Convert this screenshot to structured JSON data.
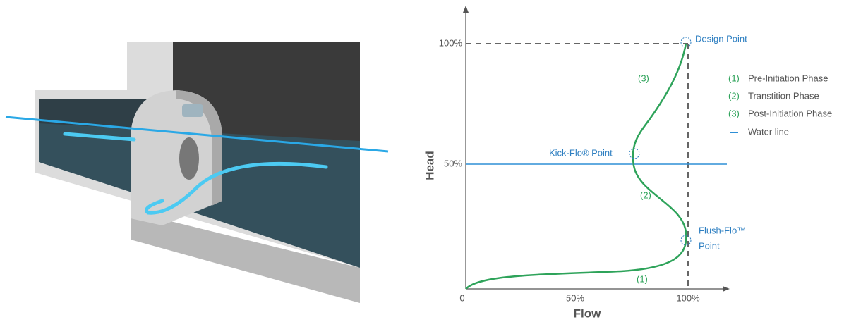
{
  "chart": {
    "y_axis_label": "Head",
    "x_axis_label": "Flow",
    "y_ticks": [
      "100%",
      "50%"
    ],
    "x_ticks": [
      "0",
      "50%",
      "100%"
    ],
    "annotations": {
      "design_point": "Design Point",
      "kick_flo_point": "Kick-Flo® Point",
      "flush_flo_point": [
        "Flush-Flo™",
        "Point"
      ]
    },
    "phase_markers": [
      "(3)",
      "(2)",
      "(1)"
    ],
    "legend": [
      {
        "marker": "(1)",
        "label": "Pre-Initiation Phase"
      },
      {
        "marker": "(2)",
        "label": "Transtition Phase"
      },
      {
        "marker": "(3)",
        "label": "Post-Initiation Phase"
      },
      {
        "label": "Water line"
      }
    ]
  }
}
